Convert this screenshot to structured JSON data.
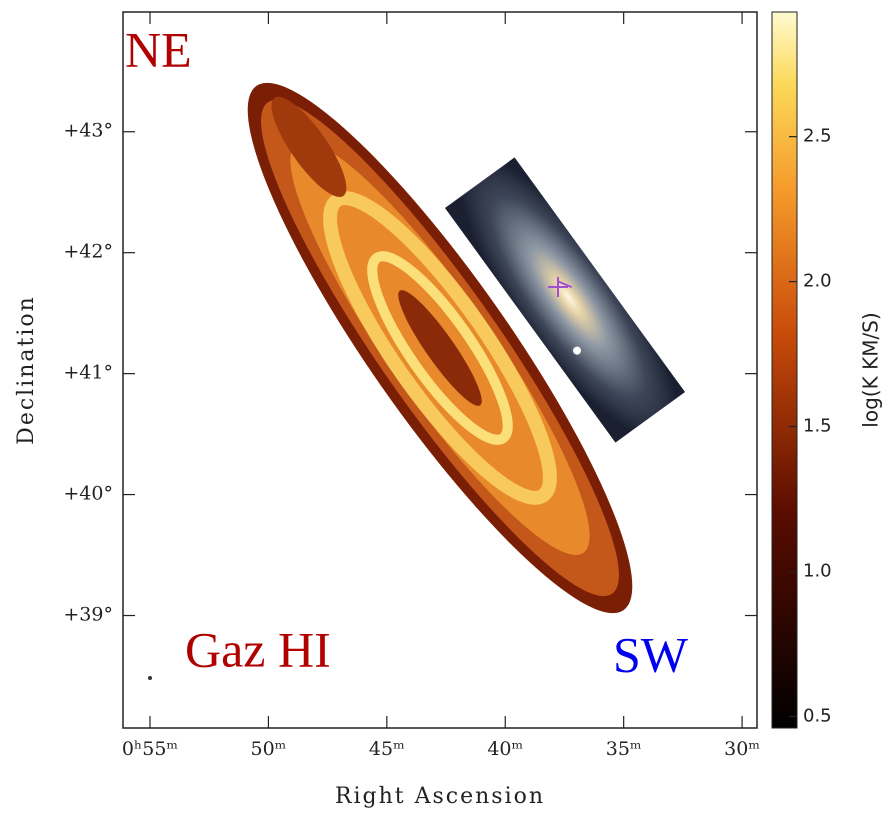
{
  "chart_data": {
    "type": "map",
    "xlabel": "Right Ascension",
    "ylabel": "Declination",
    "xlim": [
      56.14,
      29.37
    ],
    "ylim": [
      38.07,
      43.99
    ],
    "xticks": [
      {
        "value": 55,
        "label": "0ʰ55ᵐ"
      },
      {
        "value": 50,
        "label": "50ᵐ"
      },
      {
        "value": 45,
        "label": "45ᵐ"
      },
      {
        "value": 40,
        "label": "40ᵐ"
      },
      {
        "value": 35,
        "label": "35ᵐ"
      },
      {
        "value": 30,
        "label": "30ᵐ"
      }
    ],
    "yticks": [
      {
        "value": 43,
        "label": "+43°"
      },
      {
        "value": 42,
        "label": "+42°"
      },
      {
        "value": 41,
        "label": "+41°"
      },
      {
        "value": 40,
        "label": "+40°"
      },
      {
        "value": 39,
        "label": "+39°"
      }
    ],
    "colorbar": {
      "label": "log(K KM/S)",
      "lim": [
        0.46,
        2.93
      ],
      "ticks": [
        {
          "value": 0.5,
          "label": "0.5"
        },
        {
          "value": 1,
          "label": "1.0"
        },
        {
          "value": 1.5,
          "label": "1.5"
        },
        {
          "value": 2,
          "label": "2.0"
        },
        {
          "value": 2.5,
          "label": "2.5"
        }
      ]
    },
    "annotations": [
      {
        "text": "NE",
        "color": "#b00000"
      },
      {
        "text": "Gaz HI",
        "color": "#b00000"
      },
      {
        "text": "SW",
        "color": "#0000ee"
      }
    ]
  }
}
